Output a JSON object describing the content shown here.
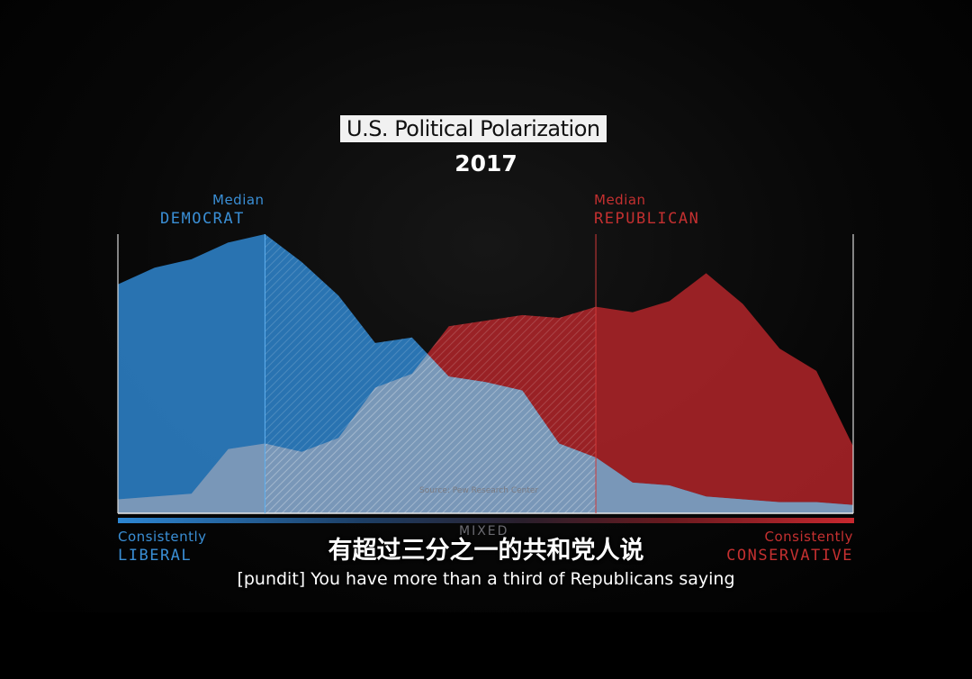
{
  "header": {
    "title": "U.S. Political Polarization",
    "year": "2017"
  },
  "labels": {
    "median_democrat_small": "Median",
    "median_democrat_big": "DEMOCRAT",
    "median_republican_small": "Median",
    "median_republican_big": "REPUBLICAN",
    "left_small": "Consistently",
    "left_big": "LIBERAL",
    "right_small": "Consistently",
    "right_big": "CONSERVATIVE",
    "center": "MIXED",
    "source": "Source: Pew Research Center"
  },
  "subtitles": {
    "chinese": "有超过三分之一的共和党人说",
    "english": "[pundit] You have more than a third of Republicans saying"
  },
  "colors": {
    "democrat": "#2f86cf",
    "republican": "#b8262b",
    "overlap": "#7f9bb8"
  },
  "chart_data": {
    "type": "area",
    "title": "U.S. Political Polarization",
    "subtitle": "2017",
    "xlabel": "",
    "ylabel": "",
    "xlim": [
      0,
      20
    ],
    "ylim": [
      0,
      100
    ],
    "grid": false,
    "medians": {
      "democrat": 4,
      "republican": 13
    },
    "x": [
      0,
      1,
      2,
      3,
      4,
      5,
      6,
      7,
      8,
      9,
      10,
      11,
      12,
      13,
      14,
      15,
      16,
      17,
      18,
      19,
      20
    ],
    "series": [
      {
        "name": "DEMOCRAT",
        "color": "#2f86cf",
        "values": [
          82,
          88,
          91,
          97,
          100,
          90,
          78,
          61,
          63,
          49,
          47,
          44,
          25,
          20,
          11,
          10,
          6,
          5,
          4,
          4,
          3
        ]
      },
      {
        "name": "REPUBLICAN",
        "color": "#b8262b",
        "values": [
          5,
          6,
          7,
          23,
          25,
          22,
          27,
          45,
          50,
          67,
          69,
          71,
          70,
          74,
          72,
          76,
          86,
          75,
          59,
          51,
          24
        ]
      }
    ]
  }
}
